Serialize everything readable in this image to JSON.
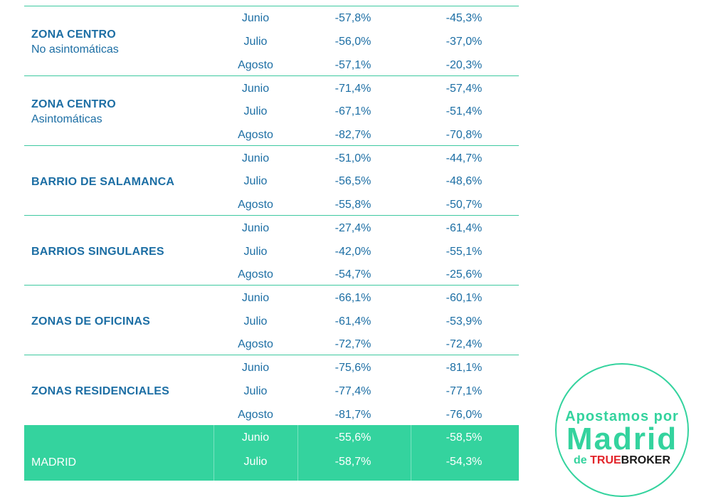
{
  "zones": [
    {
      "name": "ZONA CENTRO",
      "sub": "No asintomáticas",
      "rows": [
        [
          "Junio",
          "-57,8%",
          "-45,3%"
        ],
        [
          "Julio",
          "-56,0%",
          "-37,0%"
        ],
        [
          "Agosto",
          "-57,1%",
          "-20,3%"
        ]
      ]
    },
    {
      "name": "ZONA CENTRO",
      "sub": "Asintomáticas",
      "rows": [
        [
          "Junio",
          "-71,4%",
          "-57,4%"
        ],
        [
          "Julio",
          "-67,1%",
          "-51,4%"
        ],
        [
          "Agosto",
          "-82,7%",
          "-70,8%"
        ]
      ]
    },
    {
      "name": "BARRIO DE SALAMANCA",
      "sub": "",
      "rows": [
        [
          "Junio",
          "-51,0%",
          "-44,7%"
        ],
        [
          "Julio",
          "-56,5%",
          "-48,6%"
        ],
        [
          "Agosto",
          "-55,8%",
          "-50,7%"
        ]
      ]
    },
    {
      "name": "BARRIOS SINGULARES",
      "sub": "",
      "rows": [
        [
          "Junio",
          "-27,4%",
          "-61,4%"
        ],
        [
          "Julio",
          "-42,0%",
          "-55,1%"
        ],
        [
          "Agosto",
          "-54,7%",
          "-25,6%"
        ]
      ]
    },
    {
      "name": "ZONAS DE OFICINAS",
      "sub": "",
      "rows": [
        [
          "Junio",
          "-66,1%",
          "-60,1%"
        ],
        [
          "Julio",
          "-61,4%",
          "-53,9%"
        ],
        [
          "Agosto",
          "-72,7%",
          "-72,4%"
        ]
      ]
    },
    {
      "name": "ZONAS RESIDENCIALES",
      "sub": "",
      "rows": [
        [
          "Junio",
          "-75,6%",
          "-81,1%"
        ],
        [
          "Julio",
          "-77,4%",
          "-77,1%"
        ],
        [
          "Agosto",
          "-81,7%",
          "-76,0%"
        ]
      ]
    },
    {
      "name": "MADRID",
      "sub": "",
      "rows": [
        [
          "Junio",
          "-55,6%",
          "-58,5%"
        ],
        [
          "Julio",
          "-58,7%",
          "-54,3%"
        ]
      ]
    }
  ],
  "stamp": {
    "line1": "Apostamos por",
    "line2": "Madrid",
    "de": "de",
    "brand_a": "TRUE",
    "brand_b": "BROKER"
  },
  "colors": {
    "accent": "#34d39e",
    "text": "#1c6ea4",
    "brand_red": "#e2242a"
  }
}
